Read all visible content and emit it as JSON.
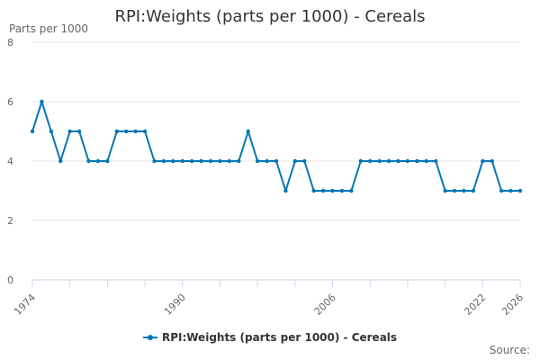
{
  "chart_data": {
    "type": "line",
    "title": "RPI:Weights (parts per 1000) - Cereals",
    "ylabel": "Parts per 1000",
    "xlabel": "",
    "ylim": [
      0,
      8
    ],
    "yticks": [
      0,
      2,
      4,
      6,
      8
    ],
    "xlim": [
      1974,
      2026
    ],
    "xticks": [
      1974,
      1990,
      2006,
      2022,
      2026
    ],
    "grid": "horizontal",
    "legend_position": "bottom",
    "series": [
      {
        "name": "RPI:Weights (parts per 1000) - Cereals",
        "color": "#0075b7",
        "x": [
          1974,
          1975,
          1976,
          1977,
          1978,
          1979,
          1980,
          1981,
          1982,
          1983,
          1984,
          1985,
          1986,
          1987,
          1988,
          1989,
          1990,
          1991,
          1992,
          1993,
          1994,
          1995,
          1996,
          1997,
          1998,
          1999,
          2000,
          2001,
          2002,
          2003,
          2004,
          2005,
          2006,
          2007,
          2008,
          2009,
          2010,
          2011,
          2012,
          2013,
          2014,
          2015,
          2016,
          2017,
          2018,
          2019,
          2020,
          2021,
          2022,
          2023,
          2024,
          2025,
          2026
        ],
        "values": [
          5,
          6,
          5,
          4,
          5,
          5,
          4,
          4,
          4,
          5,
          5,
          5,
          5,
          4,
          4,
          4,
          4,
          4,
          4,
          4,
          4,
          4,
          4,
          5,
          4,
          4,
          4,
          3,
          4,
          4,
          3,
          3,
          3,
          3,
          3,
          4,
          4,
          4,
          4,
          4,
          4,
          4,
          4,
          4,
          3,
          3,
          3,
          3,
          4,
          4,
          3,
          3,
          3
        ]
      }
    ],
    "source_label": "Source:"
  }
}
